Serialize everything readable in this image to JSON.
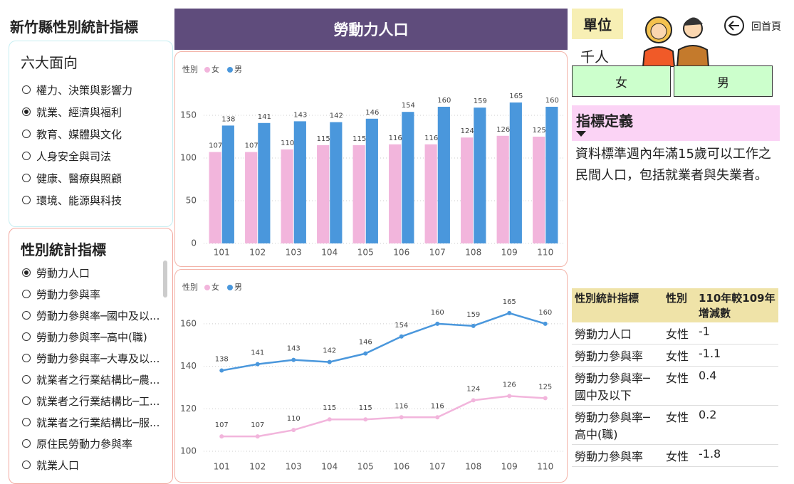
{
  "header": {
    "title": "新竹縣性別統計指標",
    "banner": "勞動力人口",
    "unit_label": "單位",
    "unit": "千人",
    "home": "回首頁"
  },
  "gender_buttons": [
    "女",
    "男"
  ],
  "slicer_dimensions": {
    "title": "六大面向",
    "selected": 1,
    "options": [
      "權力、決策與影響力",
      "就業、經濟與福利",
      "教育、媒體與文化",
      "人身安全與司法",
      "健康、醫療與照顧",
      "環境、能源與科技"
    ]
  },
  "slicer_indicators": {
    "title": "性別統計指標",
    "selected": 0,
    "options": [
      "勞動力人口",
      "勞動力參與率",
      "勞動力參與率─國中及以...",
      "勞動力參與率─高中(職)",
      "勞動力參與率─大專及以...",
      "就業者之行業結構比─農...",
      "就業者之行業結構比─工...",
      "就業者之行業結構比─服...",
      "原住民勞動力參與率",
      "就業人口"
    ]
  },
  "definition": {
    "title": "指標定義",
    "text": "資料標準週內年滿15歲可以工作之民間人口，包括就業者與失業者。"
  },
  "table": {
    "headers": [
      "性別統計指標",
      "性別",
      "110年較109年增減數"
    ],
    "rows": [
      [
        "勞動力人口",
        "女性",
        "-1"
      ],
      [
        "勞動力參與率",
        "女性",
        "-1.1"
      ],
      [
        "勞動力參與率─國中及以下",
        "女性",
        "0.4"
      ],
      [
        "勞動力參與率─高中(職)",
        "女性",
        "0.2"
      ],
      [
        "勞動力參與率",
        "女性",
        "-1.8"
      ]
    ]
  },
  "chart_data": [
    {
      "type": "bar",
      "legend_title": "性別",
      "categories": [
        "101",
        "102",
        "103",
        "104",
        "105",
        "106",
        "107",
        "108",
        "109",
        "110"
      ],
      "series": [
        {
          "name": "女",
          "color": "#f2b5dc",
          "values": [
            107,
            107,
            110,
            115,
            115,
            116,
            116,
            124,
            126,
            125
          ]
        },
        {
          "name": "男",
          "color": "#4a97dc",
          "values": [
            138,
            141,
            143,
            142,
            146,
            154,
            160,
            159,
            165,
            160
          ]
        }
      ],
      "ylim": [
        0,
        180
      ],
      "yticks": [
        0,
        50,
        100,
        150
      ],
      "grid": true
    },
    {
      "type": "line",
      "legend_title": "性別",
      "categories": [
        "101",
        "102",
        "103",
        "104",
        "105",
        "106",
        "107",
        "108",
        "109",
        "110"
      ],
      "series": [
        {
          "name": "女",
          "color": "#f2b5dc",
          "values": [
            107,
            107,
            110,
            115,
            115,
            116,
            116,
            124,
            126,
            125
          ]
        },
        {
          "name": "男",
          "color": "#4a97dc",
          "values": [
            138,
            141,
            143,
            142,
            146,
            154,
            160,
            159,
            165,
            160
          ]
        }
      ],
      "ylim": [
        97,
        170
      ],
      "yticks": [
        100,
        120,
        140,
        160
      ],
      "grid": true
    }
  ]
}
